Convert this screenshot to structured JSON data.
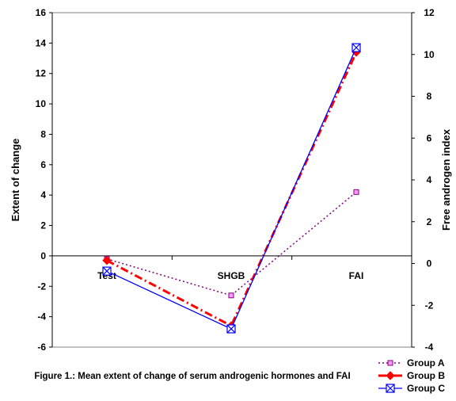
{
  "chart_data": {
    "type": "line",
    "categories": [
      "Test",
      "SHGB",
      "FAI"
    ],
    "ylabel": "Extent of change",
    "y2label": "Free androgen index",
    "ylim": [
      -6,
      16
    ],
    "y2lim": [
      -4,
      12
    ],
    "yticks": [
      "16",
      "14",
      "12",
      "10",
      "8",
      "6",
      "4",
      "2",
      "0",
      "-2",
      "-4",
      "-6"
    ],
    "y2ticks": [
      "12",
      "10",
      "8",
      "6",
      "4",
      "2",
      "0",
      "-2",
      "-4"
    ],
    "grid": false,
    "legend_position": "bottom-right",
    "caption": "Figure 1.: Mean extent of change of serum androgenic hormones and FAI",
    "series": [
      {
        "name": "Group A",
        "axis": "left",
        "color": "#800080",
        "marker": "square",
        "line_style": "dotted",
        "values": [
          -0.2,
          -2.6,
          4.2
        ]
      },
      {
        "name": "Group B",
        "axis": "left",
        "color": "#ff0000",
        "marker": "diamond",
        "line_style": "dash-dot",
        "values": [
          -0.3,
          -4.6,
          13.4
        ]
      },
      {
        "name": "Group C",
        "axis": "left",
        "color": "#0000ff",
        "marker": "square-x",
        "line_style": "solid",
        "values": [
          -1.0,
          -4.8,
          13.7
        ]
      }
    ]
  }
}
